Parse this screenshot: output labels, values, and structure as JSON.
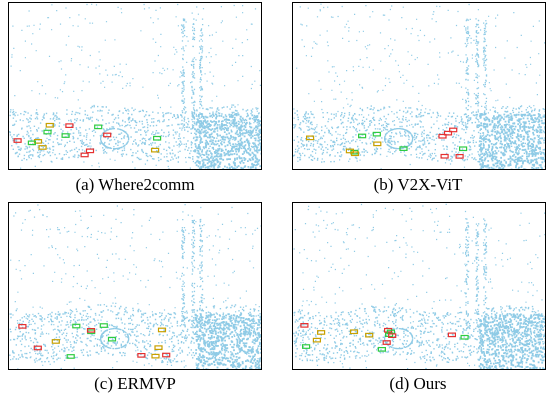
{
  "panels": [
    {
      "caption": "(a) Where2comm"
    },
    {
      "caption": "(b) V2X-ViT"
    },
    {
      "caption": "(c) ERMVP"
    },
    {
      "caption": "(d) Ours"
    }
  ]
}
